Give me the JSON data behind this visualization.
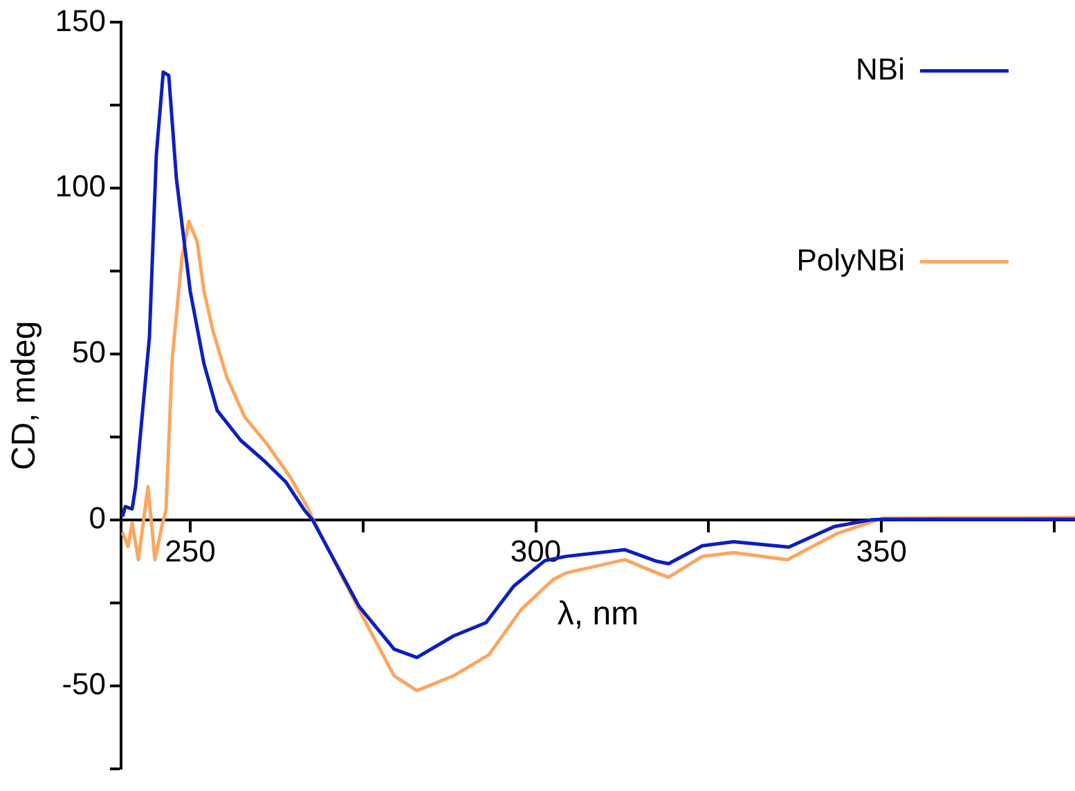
{
  "chart_data": {
    "type": "line",
    "xlabel": "λ, nm",
    "ylabel": "CD, mdeg",
    "xlim": [
      240,
      378
    ],
    "ylim": [
      -75,
      150
    ],
    "xticks": [
      250,
      {
        "value": 275,
        "label": null
      },
      300,
      {
        "value": 325,
        "label": null
      },
      350,
      {
        "value": 375,
        "label": null
      }
    ],
    "yticks": [
      {
        "value": -75,
        "label": null
      },
      -50,
      {
        "value": -25,
        "label": null
      },
      0,
      {
        "value": 25,
        "label": null
      },
      50,
      {
        "value": 75,
        "label": null
      },
      100,
      {
        "value": 125,
        "label": null
      },
      150
    ],
    "grid": false,
    "legend": "top right",
    "marker": "none",
    "line_style": "solid",
    "series": [
      {
        "name": "NBi",
        "color": "#0c1fc0",
        "x": [
          240.2,
          240.6,
          241.6,
          242.1,
          244.1,
          245.1,
          246.1,
          246.9,
          248.0,
          250,
          252,
          253.9,
          257.3,
          260.6,
          263.8,
          266.5,
          267.7,
          274.4,
          279.5,
          282.8,
          288.1,
          292.8,
          296.8,
          301.3,
          304.4,
          312.9,
          317.5,
          319.2,
          324.1,
          328.6,
          336.6,
          343.2,
          348.5,
          350.2,
          360,
          370,
          378
        ],
        "values": [
          1,
          4,
          3.3,
          10,
          55,
          110,
          135,
          134,
          103,
          69,
          47,
          33,
          24,
          18,
          11.5,
          3,
          0,
          -26,
          -39,
          -41.5,
          -35,
          -31,
          -20,
          -12.3,
          -11,
          -9,
          -12.5,
          -13.2,
          -7.8,
          -6.6,
          -8.2,
          -2,
          0,
          0.2,
          0.2,
          0.2,
          0.2
        ]
      },
      {
        "name": "PolyNBi",
        "color": "#fca661",
        "x": [
          240.2,
          241,
          241.6,
          242.5,
          243.9,
          244.9,
          245.9,
          246.5,
          247.4,
          248.8,
          249.8,
          251,
          252,
          253.3,
          255.3,
          257.9,
          261.2,
          264.5,
          267.1,
          267.7,
          274.4,
          279.5,
          282.8,
          288.1,
          293.2,
          297.9,
          302.5,
          304.4,
          312.9,
          317.5,
          319.2,
          324.1,
          328.6,
          336.4,
          343.7,
          350.2,
          360,
          370,
          378
        ],
        "values": [
          -3.7,
          -8,
          -1,
          -12,
          10,
          -12,
          -2,
          3,
          48.6,
          79,
          90,
          84,
          69,
          57,
          43,
          31,
          22.6,
          12.8,
          3.3,
          0.4,
          -27,
          -47,
          -51.5,
          -47,
          -40.7,
          -27,
          -18,
          -16,
          -12,
          -16,
          -17.3,
          -11,
          -9.9,
          -12,
          -4,
          0.5,
          0.6,
          0.6,
          0.7
        ]
      }
    ]
  }
}
